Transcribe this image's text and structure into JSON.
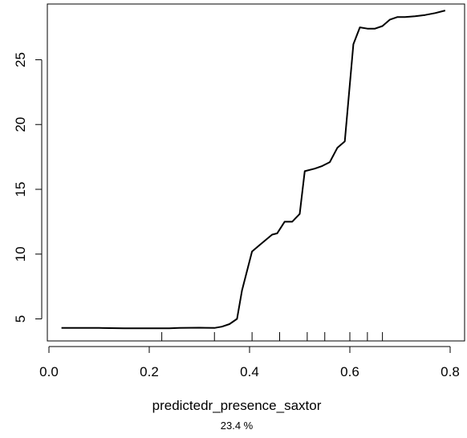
{
  "chart_data": {
    "type": "line",
    "xlabel": "predictedr_presence_saxtor",
    "subtitle": "23.4 %",
    "xlim": [
      0,
      0.8
    ],
    "ylim": [
      3.3,
      29.3
    ],
    "x_ticks": [
      0.0,
      0.2,
      0.4,
      0.6,
      0.8
    ],
    "x_tick_labels": [
      "0.0",
      "0.2",
      "0.4",
      "0.6",
      "0.8"
    ],
    "y_ticks": [
      5,
      10,
      15,
      20,
      25
    ],
    "y_tick_labels": [
      "5",
      "10",
      "15",
      "20",
      "25"
    ],
    "rug": [
      0.225,
      0.33,
      0.405,
      0.46,
      0.515,
      0.55,
      0.6,
      0.635,
      0.665
    ],
    "series": [
      {
        "x": [
          0.025,
          0.05,
          0.1,
          0.15,
          0.2,
          0.24,
          0.26,
          0.3,
          0.33,
          0.345,
          0.36,
          0.375,
          0.385,
          0.405,
          0.42,
          0.445,
          0.455,
          0.47,
          0.485,
          0.5,
          0.51,
          0.53,
          0.545,
          0.56,
          0.575,
          0.59,
          0.607,
          0.62,
          0.635,
          0.65,
          0.665,
          0.68,
          0.695,
          0.71,
          0.73,
          0.75,
          0.77,
          0.79
        ],
        "y": [
          4.3,
          4.3,
          4.3,
          4.28,
          4.28,
          4.28,
          4.3,
          4.32,
          4.3,
          4.4,
          4.6,
          5.0,
          7.2,
          10.2,
          10.7,
          11.5,
          11.6,
          12.5,
          12.5,
          13.1,
          16.4,
          16.6,
          16.8,
          17.1,
          18.2,
          18.7,
          26.2,
          27.5,
          27.4,
          27.4,
          27.6,
          28.1,
          28.3,
          28.3,
          28.35,
          28.45,
          28.6,
          28.8
        ]
      }
    ]
  }
}
